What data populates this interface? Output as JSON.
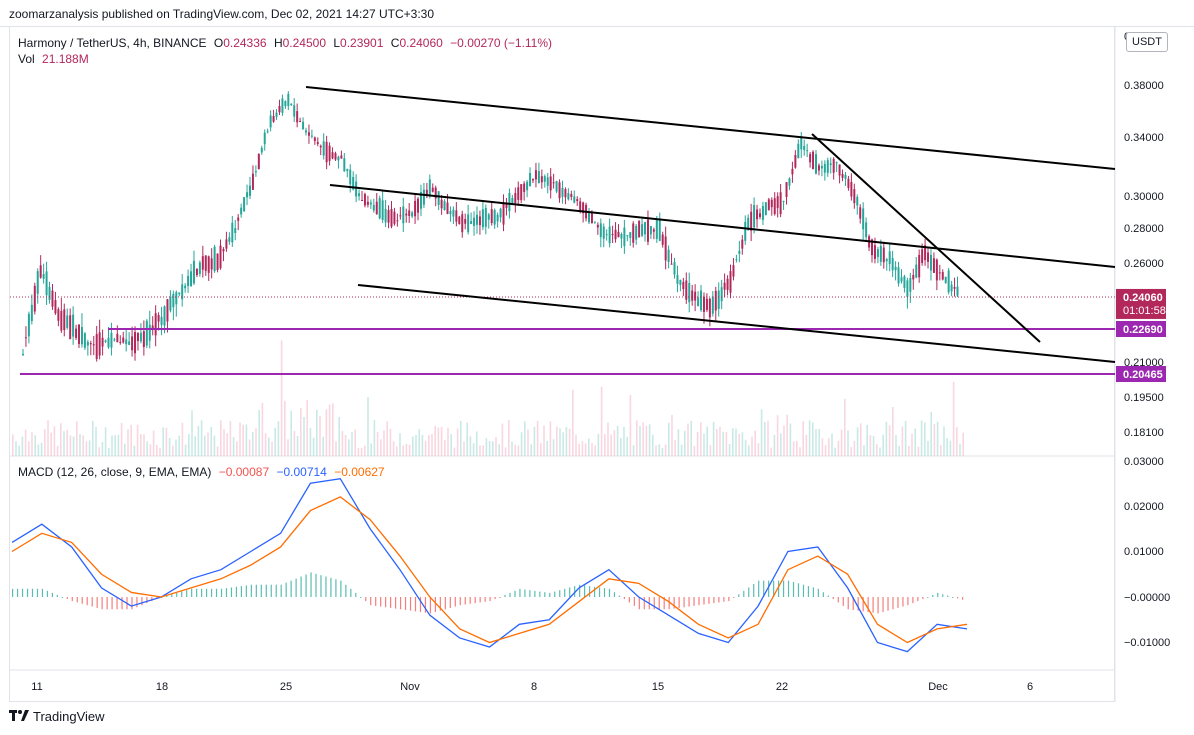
{
  "header": {
    "publisher": "zoomarzanalysis published on TradingView.com, Dec 02, 2021 14:27 UTC+3:30"
  },
  "legend": {
    "symbol": "Harmony / TetherUS, 4h, BINANCE",
    "o_label": "O",
    "o_value": "0.24336",
    "h_label": "H",
    "h_value": "0.24500",
    "l_label": "L",
    "l_value": "0.23901",
    "c_label": "C",
    "c_value": "0.24060",
    "change": "−0.00270 (−1.11%)",
    "vol_label": "Vol",
    "vol_value": "21.188M"
  },
  "macd_legend": {
    "title": "MACD (12, 26, close, 9, EMA, EMA)",
    "hist": "−0.00087",
    "macd": "−0.00714",
    "signal": "−0.00627"
  },
  "currency_button": "USDT",
  "scale_zero": "0",
  "footer": {
    "brand": "TradingView"
  },
  "colors": {
    "up": "#26a69a",
    "down": "#b2285b",
    "macd": "#2962ff",
    "signal": "#ff6d00",
    "level": "#9c27b0",
    "price": "#b2285b",
    "trend": "#000000"
  },
  "chart_data": [
    {
      "type": "candlestick",
      "title": "Harmony / TetherUS, 4h, BINANCE",
      "price_axis_ticks": [
        "0.38000",
        "0.34000",
        "0.30000",
        "0.28000",
        "0.26000",
        "0.21000",
        "0.19500",
        "0.18100"
      ],
      "time_axis_ticks": [
        "11",
        "18",
        "25",
        "Nov",
        "8",
        "15",
        "22",
        "Dec",
        "6"
      ],
      "last_price": {
        "value": "0.24060",
        "countdown": "01:01:58"
      },
      "horizontal_levels": [
        {
          "value": "0.22690"
        },
        {
          "value": "0.20465"
        }
      ],
      "trendlines": [
        "channel upper",
        "channel middle",
        "channel lower",
        "descending resistance"
      ],
      "price_path": [
        [
          "Oct 11",
          0.215
        ],
        [
          "Oct 12",
          0.255
        ],
        [
          "Oct 13",
          0.232
        ],
        [
          "Oct 14",
          0.226
        ],
        [
          "Oct 15",
          0.218
        ],
        [
          "Oct 16",
          0.222
        ],
        [
          "Oct 17",
          0.219
        ],
        [
          "Oct 18",
          0.224
        ],
        [
          "Oct 19",
          0.233
        ],
        [
          "Oct 20",
          0.245
        ],
        [
          "Oct 21",
          0.258
        ],
        [
          "Oct 22",
          0.262
        ],
        [
          "Oct 23",
          0.28
        ],
        [
          "Oct 24",
          0.31
        ],
        [
          "Oct 25",
          0.352
        ],
        [
          "Oct 26",
          0.368
        ],
        [
          "Oct 27",
          0.345
        ],
        [
          "Oct 28",
          0.332
        ],
        [
          "Oct 29",
          0.325
        ],
        [
          "Oct 30",
          0.3
        ],
        [
          "Oct 31",
          0.293
        ],
        [
          "Nov 1",
          0.285
        ],
        [
          "Nov 2",
          0.29
        ],
        [
          "Nov 3",
          0.305
        ],
        [
          "Nov 4",
          0.292
        ],
        [
          "Nov 5",
          0.283
        ],
        [
          "Nov 6",
          0.285
        ],
        [
          "Nov 7",
          0.288
        ],
        [
          "Nov 8",
          0.302
        ],
        [
          "Nov 9",
          0.314
        ],
        [
          "Nov 10",
          0.308
        ],
        [
          "Nov 11",
          0.3
        ],
        [
          "Nov 12",
          0.288
        ],
        [
          "Nov 13",
          0.276
        ],
        [
          "Nov 14",
          0.275
        ],
        [
          "Nov 15",
          0.28
        ],
        [
          "Nov 16",
          0.278
        ],
        [
          "Nov 17",
          0.252
        ],
        [
          "Nov 18",
          0.24
        ],
        [
          "Nov 19",
          0.236
        ],
        [
          "Nov 20",
          0.25
        ],
        [
          "Nov 21",
          0.283
        ],
        [
          "Nov 22",
          0.292
        ],
        [
          "Nov 23",
          0.298
        ],
        [
          "Nov 24",
          0.336
        ],
        [
          "Nov 25",
          0.318
        ],
        [
          "Nov 26",
          0.322
        ],
        [
          "Nov 27",
          0.301
        ],
        [
          "Nov 28",
          0.268
        ],
        [
          "Nov 29",
          0.262
        ],
        [
          "Nov 30",
          0.245
        ],
        [
          "Dec 1",
          0.266
        ],
        [
          "Dec 2",
          0.252
        ],
        [
          "Dec 3",
          0.2406
        ]
      ]
    },
    {
      "type": "line",
      "title": "MACD (12, 26, close, 9, EMA, EMA)",
      "axis_ticks": [
        "0.03000",
        "0.02000",
        "0.01000",
        "−0.00000",
        "−0.01000"
      ],
      "series": [
        {
          "name": "MACD",
          "values": [
            0.012,
            0.016,
            0.011,
            0.002,
            -0.002,
            0.0,
            0.004,
            0.006,
            0.01,
            0.014,
            0.025,
            0.026,
            0.015,
            0.006,
            -0.004,
            -0.009,
            -0.011,
            -0.006,
            -0.005,
            0.002,
            0.006,
            0.0,
            -0.004,
            -0.008,
            -0.01,
            -0.002,
            0.01,
            0.011,
            0.002,
            -0.01,
            -0.012,
            -0.006,
            -0.007
          ]
        },
        {
          "name": "Signal",
          "values": [
            0.01,
            0.014,
            0.012,
            0.005,
            0.001,
            0.0,
            0.002,
            0.004,
            0.007,
            0.011,
            0.019,
            0.022,
            0.017,
            0.009,
            0.0,
            -0.007,
            -0.01,
            -0.008,
            -0.006,
            -0.001,
            0.004,
            0.003,
            -0.001,
            -0.006,
            -0.009,
            -0.006,
            0.006,
            0.009,
            0.005,
            -0.006,
            -0.01,
            -0.007,
            -0.006
          ]
        }
      ]
    }
  ]
}
